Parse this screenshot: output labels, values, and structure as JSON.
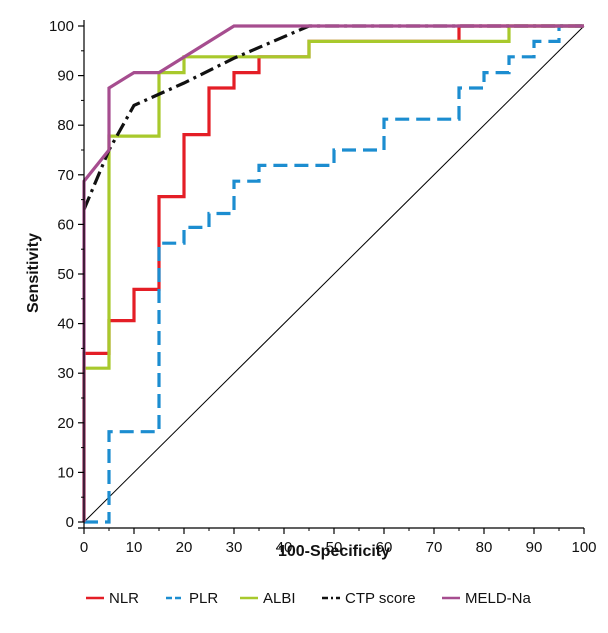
{
  "chart_data": {
    "type": "line",
    "title": "",
    "xlabel": "100-Specificity",
    "ylabel": "Sensitivity",
    "xlim": [
      0,
      100
    ],
    "ylim": [
      0,
      100
    ],
    "xticks": [
      0,
      10,
      20,
      30,
      40,
      50,
      60,
      70,
      80,
      90,
      100
    ],
    "yticks": [
      0,
      10,
      20,
      30,
      40,
      50,
      60,
      70,
      80,
      90,
      100
    ],
    "grid": false,
    "legend_position": "bottom",
    "reference_line": {
      "x": [
        0,
        100
      ],
      "y": [
        0,
        100
      ],
      "color": "#000000"
    },
    "series": [
      {
        "name": "NLR",
        "color": "#e41e26",
        "dash": "solid",
        "x": [
          0,
          0,
          5,
          5,
          10,
          10,
          15,
          15,
          20,
          20,
          25,
          25,
          30,
          30,
          35,
          35,
          45,
          45,
          75,
          75,
          100
        ],
        "y": [
          0,
          34,
          34,
          40.6,
          40.6,
          46.9,
          46.9,
          65.6,
          65.6,
          78.1,
          78.1,
          87.5,
          87.5,
          90.6,
          90.6,
          93.8,
          93.8,
          96.9,
          96.9,
          100,
          100
        ]
      },
      {
        "name": "PLR",
        "color": "#1c8dd0",
        "dash": "dashed",
        "x": [
          0,
          5,
          5,
          15,
          15,
          20,
          20,
          25,
          25,
          30,
          30,
          35,
          35,
          45,
          45,
          50,
          50,
          60,
          60,
          75,
          75,
          80,
          80,
          85,
          85,
          90,
          90,
          95,
          95,
          100
        ],
        "y": [
          0,
          0,
          18.2,
          18.2,
          56.2,
          56.2,
          59.4,
          59.4,
          62.2,
          62.2,
          68.7,
          68.7,
          71.9,
          71.9,
          71.9,
          71.9,
          75,
          75,
          81.2,
          81.2,
          87.5,
          87.5,
          90.6,
          90.6,
          93.8,
          93.8,
          96.9,
          96.9,
          100,
          100
        ]
      },
      {
        "name": "ALBI",
        "color": "#a8c92c",
        "dash": "solid",
        "x": [
          0,
          0,
          5,
          5,
          15,
          15,
          20,
          20,
          45,
          45,
          85,
          85,
          100
        ],
        "y": [
          0,
          31,
          31,
          77.8,
          77.8,
          90.6,
          90.6,
          93.8,
          93.8,
          96.9,
          96.9,
          100,
          100
        ]
      },
      {
        "name": "CTP score",
        "color": "#111111",
        "dash": "dashdot",
        "x": [
          0,
          5,
          10,
          20,
          30,
          45,
          100
        ],
        "y": [
          63,
          75,
          84,
          88.5,
          93.5,
          100,
          100
        ]
      },
      {
        "name": "MELD-Na",
        "color": "#a64d8f",
        "dash": "solid",
        "x": [
          0,
          0,
          5,
          5,
          10,
          15,
          30,
          100
        ],
        "y": [
          0,
          68.7,
          75,
          87.5,
          90.6,
          90.6,
          100,
          100
        ]
      }
    ]
  }
}
